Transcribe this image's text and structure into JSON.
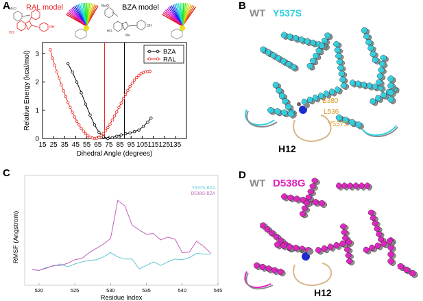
{
  "panels": {
    "a": "A",
    "b": "B",
    "c": "C",
    "d": "D"
  },
  "panel_a": {
    "ral_model_label": "RAL model",
    "bza_model_label": "BZA model",
    "chem_labels": {
      "ral_meo": "MeO",
      "ral_oh": "OH",
      "ral_ho": "HO",
      "bza_meo": "MeO",
      "bza_oh": "OH",
      "bza_me": "Me",
      "bza_ho": "HO"
    },
    "colors": {
      "bza": "#000000",
      "ral": "#e8231f",
      "ral_vline": "#e8231f",
      "bza_vline": "#000000"
    }
  },
  "panel_b": {
    "wt_label": "WT",
    "mut_label": "Y537S",
    "h12_label": "H12",
    "residue_labels": [
      "E380",
      "L536",
      "Y537S"
    ],
    "mut_color": "#2fd0e0",
    "wt_color": "#8a8a8a"
  },
  "panel_d": {
    "wt_label": "WT",
    "mut_label": "D538G",
    "h12_label": "H12",
    "mut_color": "#e020c0",
    "wt_color": "#8a8a8a"
  },
  "chart_data": [
    {
      "type": "line",
      "xlabel": "Dihedral Angle (degrees)",
      "ylabel": "Relative Energy (kcal/mol)",
      "xlim": [
        15,
        145
      ],
      "ylim": [
        0,
        3.4
      ],
      "xticks": [
        15,
        25,
        35,
        45,
        55,
        65,
        75,
        85,
        95,
        105,
        115,
        125,
        135
      ],
      "yticks": [
        0,
        1,
        2,
        3
      ],
      "vlines": [
        {
          "x": 71,
          "color": "#e8231f"
        },
        {
          "x": 89,
          "color": "#000000"
        }
      ],
      "legend_position": "top-right",
      "series": [
        {
          "name": "BZA",
          "color": "#000000",
          "marker": "circle",
          "points": [
            [
              38,
              2.65
            ],
            [
              42,
              2.35
            ],
            [
              46,
              2.0
            ],
            [
              50,
              1.62
            ],
            [
              54,
              1.22
            ],
            [
              58,
              0.83
            ],
            [
              62,
              0.48
            ],
            [
              66,
              0.22
            ],
            [
              70,
              0.06
            ],
            [
              74,
              0.0
            ],
            [
              78,
              0.03
            ],
            [
              82,
              0.08
            ],
            [
              86,
              0.13
            ],
            [
              90,
              0.17
            ],
            [
              94,
              0.2
            ],
            [
              98,
              0.24
            ],
            [
              102,
              0.3
            ],
            [
              106,
              0.43
            ],
            [
              110,
              0.58
            ],
            [
              113,
              0.72
            ]
          ]
        },
        {
          "name": "RAL",
          "color": "#e8231f",
          "marker": "circle",
          "points": [
            [
              22,
              3.15
            ],
            [
              24,
              2.85
            ],
            [
              26,
              2.6
            ],
            [
              28,
              2.36
            ],
            [
              30,
              2.13
            ],
            [
              32,
              1.9
            ],
            [
              34,
              1.69
            ],
            [
              36,
              1.48
            ],
            [
              38,
              1.28
            ],
            [
              40,
              1.1
            ],
            [
              42,
              0.93
            ],
            [
              44,
              0.76
            ],
            [
              46,
              0.61
            ],
            [
              48,
              0.48
            ],
            [
              50,
              0.36
            ],
            [
              52,
              0.26
            ],
            [
              54,
              0.17
            ],
            [
              56,
              0.1
            ],
            [
              58,
              0.05
            ],
            [
              60,
              0.02
            ],
            [
              62,
              0.0
            ],
            [
              64,
              0.01
            ],
            [
              66,
              0.04
            ],
            [
              68,
              0.1
            ],
            [
              70,
              0.18
            ],
            [
              72,
              0.28
            ],
            [
              74,
              0.39
            ],
            [
              76,
              0.51
            ],
            [
              78,
              0.65
            ],
            [
              80,
              0.79
            ],
            [
              82,
              0.94
            ],
            [
              84,
              1.1
            ],
            [
              86,
              1.25
            ],
            [
              88,
              1.41
            ],
            [
              90,
              1.56
            ],
            [
              92,
              1.7
            ],
            [
              94,
              1.84
            ],
            [
              96,
              1.96
            ],
            [
              98,
              2.07
            ],
            [
              100,
              2.16
            ],
            [
              102,
              2.24
            ],
            [
              104,
              2.3
            ],
            [
              106,
              2.34
            ],
            [
              108,
              2.36
            ],
            [
              110,
              2.37
            ],
            [
              112,
              2.38
            ]
          ]
        }
      ]
    },
    {
      "type": "line",
      "xlabel": "Residue Index",
      "ylabel": "RMSF (Angstrom)",
      "xlim": [
        518,
        545
      ],
      "ylim": [
        0,
        1.55
      ],
      "xticks": [
        520,
        525,
        530,
        535,
        540,
        545
      ],
      "legend_position": "top-right",
      "series": [
        {
          "name": "Y537S-BZA",
          "color": "#5ec5d4",
          "points": [
            [
              519,
              0.22
            ],
            [
              520,
              0.21
            ],
            [
              521,
              0.25
            ],
            [
              522,
              0.27
            ],
            [
              523,
              0.3
            ],
            [
              524,
              0.26
            ],
            [
              525,
              0.3
            ],
            [
              526,
              0.33
            ],
            [
              527,
              0.35
            ],
            [
              528,
              0.36
            ],
            [
              529,
              0.4
            ],
            [
              530,
              0.46
            ],
            [
              531,
              0.4
            ],
            [
              532,
              0.37
            ],
            [
              533,
              0.37
            ],
            [
              534,
              0.23
            ],
            [
              535,
              0.28
            ],
            [
              536,
              0.33
            ],
            [
              537,
              0.28
            ],
            [
              538,
              0.33
            ],
            [
              539,
              0.37
            ],
            [
              540,
              0.36
            ],
            [
              541,
              0.39
            ],
            [
              542,
              0.45
            ],
            [
              543,
              0.44
            ],
            [
              544,
              0.44
            ]
          ]
        },
        {
          "name": "D538G-BZA",
          "color": "#c060b8",
          "points": [
            [
              519,
              0.22
            ],
            [
              520,
              0.21
            ],
            [
              521,
              0.24
            ],
            [
              522,
              0.28
            ],
            [
              523,
              0.28
            ],
            [
              524,
              0.31
            ],
            [
              525,
              0.36
            ],
            [
              526,
              0.38
            ],
            [
              527,
              0.46
            ],
            [
              528,
              0.52
            ],
            [
              529,
              0.58
            ],
            [
              530,
              0.66
            ],
            [
              531,
              1.2
            ],
            [
              532,
              1.12
            ],
            [
              533,
              0.85
            ],
            [
              534,
              0.78
            ],
            [
              535,
              0.72
            ],
            [
              536,
              0.73
            ],
            [
              537,
              0.64
            ],
            [
              538,
              0.68
            ],
            [
              539,
              0.65
            ],
            [
              540,
              0.46
            ],
            [
              541,
              0.47
            ],
            [
              542,
              0.62
            ],
            [
              543,
              0.55
            ],
            [
              544,
              0.45
            ]
          ]
        }
      ]
    }
  ]
}
